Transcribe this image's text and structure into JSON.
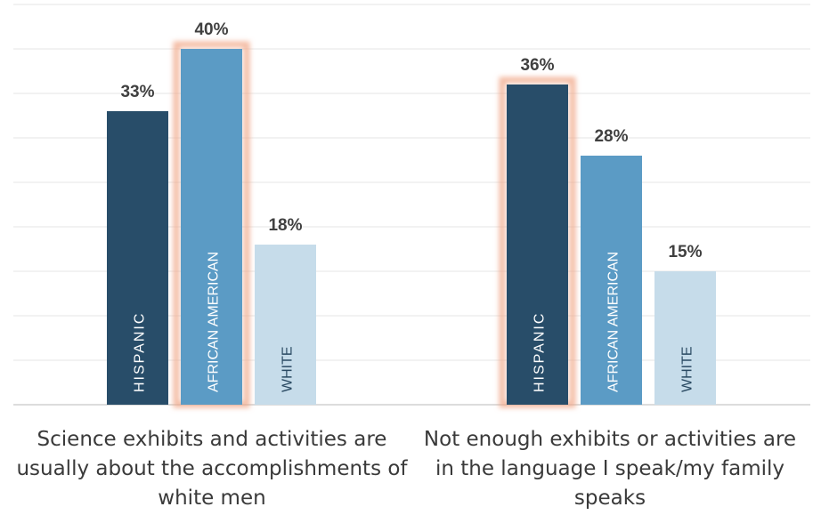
{
  "chart_data": {
    "type": "bar",
    "categories": [
      "Science exhibits and activities are usually about the accomplishments of white men",
      "Not enough exhibits or activities are in the language I speak/my family speaks"
    ],
    "series": [
      {
        "name": "HISPANIC",
        "values": [
          33,
          36
        ],
        "color": "#284d69"
      },
      {
        "name": "AFRICAN AMERICAN",
        "values": [
          40,
          28
        ],
        "color": "#5b9bc5"
      },
      {
        "name": "WHITE",
        "values": [
          18,
          15
        ],
        "color": "#c6dcea"
      }
    ],
    "data_labels": [
      [
        "33%",
        "40%",
        "18%"
      ],
      [
        "36%",
        "28%",
        "15%"
      ]
    ],
    "highlighted": [
      [
        false,
        true,
        false
      ],
      [
        true,
        false,
        false
      ]
    ],
    "highlight_color": "#f0a585",
    "ylim": [
      0,
      45
    ],
    "grid": true
  }
}
